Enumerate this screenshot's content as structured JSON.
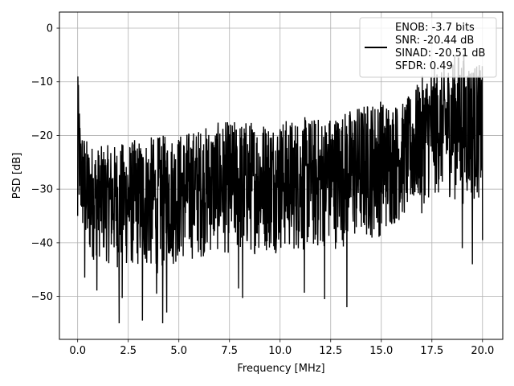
{
  "chart_data": {
    "type": "line",
    "title": "",
    "xlabel": "Frequency [MHz]",
    "ylabel": "PSD [dB]",
    "xlim": [
      -0.9,
      21.0
    ],
    "ylim": [
      -58,
      3
    ],
    "x_ticks": [
      0.0,
      2.5,
      5.0,
      7.5,
      10.0,
      12.5,
      15.0,
      17.5,
      20.0
    ],
    "x_tick_labels": [
      "0.0",
      "2.5",
      "5.0",
      "7.5",
      "10.0",
      "12.5",
      "15.0",
      "17.5",
      "20.0"
    ],
    "y_ticks": [
      0,
      -10,
      -20,
      -30,
      -40,
      -50
    ],
    "y_tick_labels": [
      "0",
      "−10",
      "−20",
      "−30",
      "−40",
      "−50"
    ],
    "grid": true,
    "legend": {
      "placement": "top-right",
      "lines": [
        "ENOB: -3.7 bits",
        "SNR: -20.44 dB",
        "SINAD: -20.51 dB",
        "SFDR: 0.49"
      ]
    },
    "series": [
      {
        "color": "#000000",
        "x_range": [
          0.0,
          20.0
        ],
        "envelope_upper": [
          [
            0.0,
            -9
          ],
          [
            0.05,
            -11
          ],
          [
            0.15,
            -18
          ],
          [
            0.5,
            -21
          ],
          [
            1.0,
            -22
          ],
          [
            2.0,
            -21.5
          ],
          [
            3.0,
            -20.5
          ],
          [
            4.0,
            -20
          ],
          [
            5.0,
            -19.5
          ],
          [
            6.0,
            -18.5
          ],
          [
            7.0,
            -17.5
          ],
          [
            8.0,
            -17
          ],
          [
            9.0,
            -17
          ],
          [
            10.0,
            -17
          ],
          [
            11.0,
            -16.5
          ],
          [
            12.0,
            -16.5
          ],
          [
            13.0,
            -15.5
          ],
          [
            14.0,
            -14
          ],
          [
            15.0,
            -13
          ],
          [
            16.0,
            -14
          ],
          [
            16.5,
            -12
          ],
          [
            17.0,
            -9
          ],
          [
            17.5,
            -7
          ],
          [
            18.0,
            -8
          ],
          [
            18.5,
            -5
          ],
          [
            19.0,
            -4
          ],
          [
            19.5,
            -6
          ],
          [
            20.0,
            -7
          ]
        ],
        "envelope_lower": [
          [
            0.0,
            -35
          ],
          [
            0.5,
            -44
          ],
          [
            1.0,
            -43
          ],
          [
            2.0,
            -45
          ],
          [
            3.0,
            -45
          ],
          [
            4.0,
            -46
          ],
          [
            5.0,
            -44
          ],
          [
            6.0,
            -43
          ],
          [
            7.0,
            -42
          ],
          [
            8.0,
            -43
          ],
          [
            9.0,
            -42
          ],
          [
            10.0,
            -42
          ],
          [
            11.0,
            -42
          ],
          [
            12.0,
            -42
          ],
          [
            13.0,
            -41
          ],
          [
            14.0,
            -40
          ],
          [
            15.0,
            -39
          ],
          [
            16.0,
            -36
          ],
          [
            17.0,
            -33
          ],
          [
            18.0,
            -31
          ],
          [
            19.0,
            -33
          ],
          [
            20.0,
            -32
          ]
        ],
        "notable_dips": [
          [
            0.35,
            -46.5
          ],
          [
            0.95,
            -48.9
          ],
          [
            2.05,
            -55
          ],
          [
            2.2,
            -50.3
          ],
          [
            3.2,
            -54.5
          ],
          [
            3.9,
            -49.5
          ],
          [
            4.2,
            -55
          ],
          [
            4.4,
            -53
          ],
          [
            7.95,
            -48.5
          ],
          [
            8.15,
            -50.3
          ],
          [
            11.2,
            -49.3
          ],
          [
            12.2,
            -50.5
          ],
          [
            13.3,
            -52
          ],
          [
            17.0,
            -34.5
          ],
          [
            19.0,
            -41
          ],
          [
            19.5,
            -44
          ],
          [
            20.0,
            -39.5
          ]
        ]
      }
    ]
  }
}
